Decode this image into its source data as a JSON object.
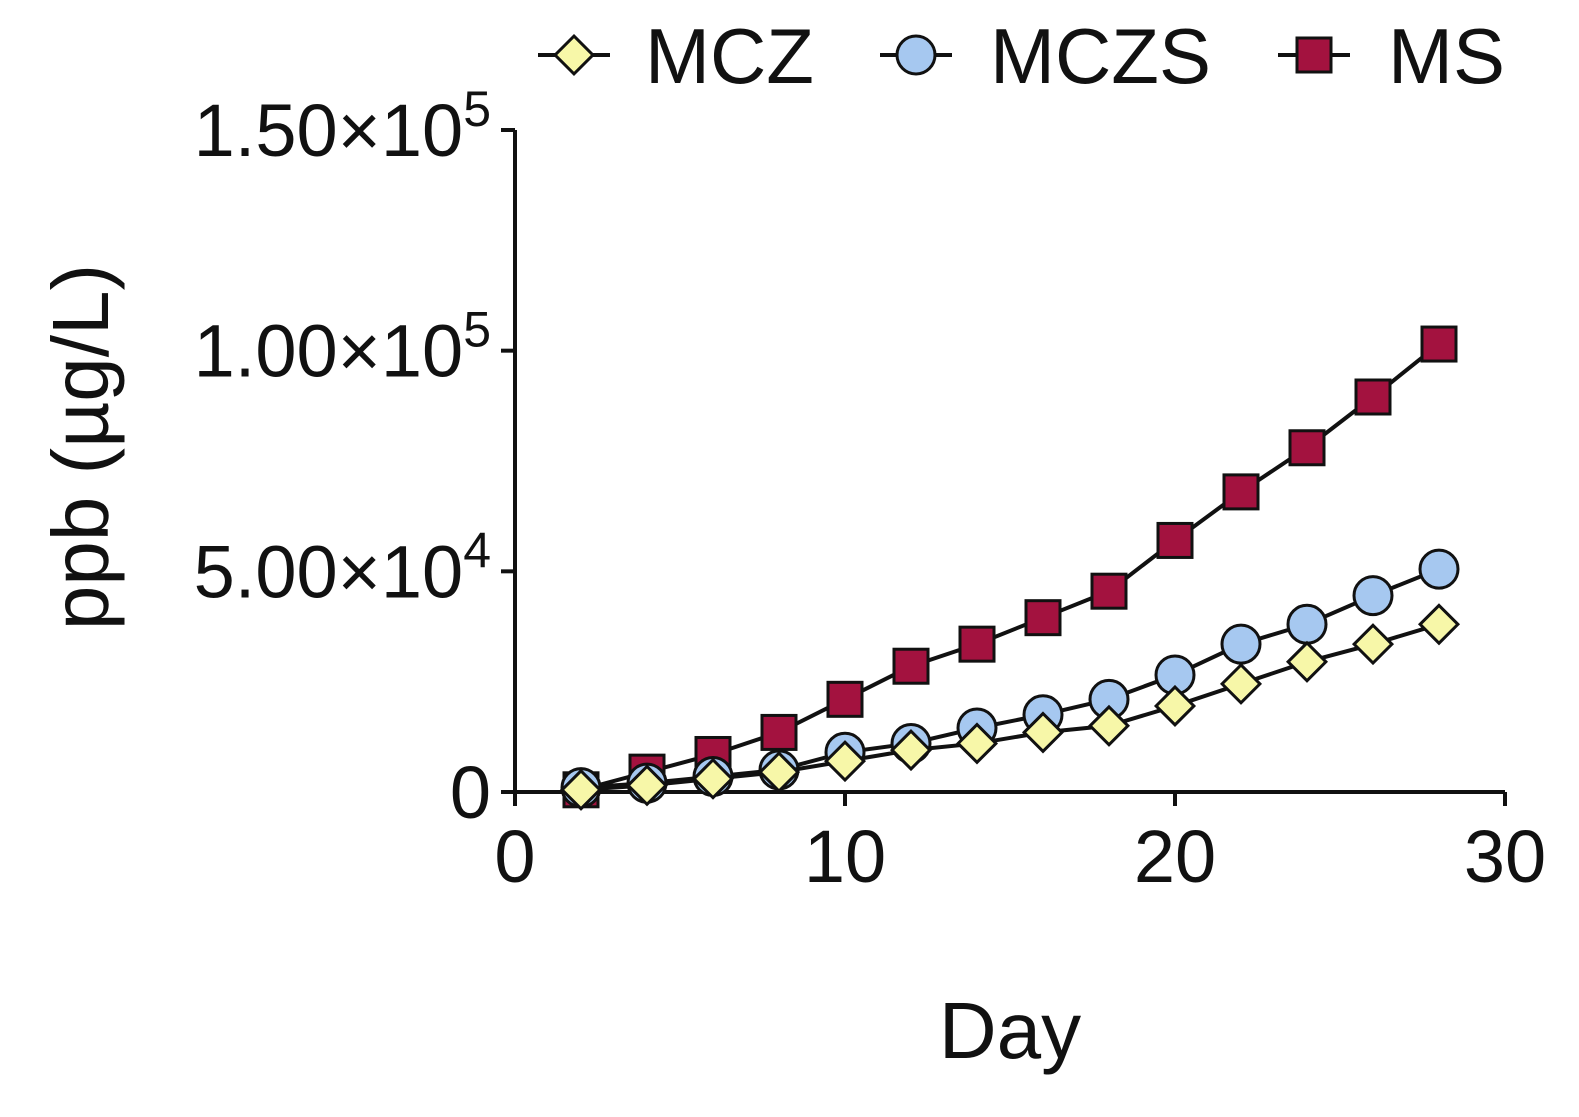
{
  "chart_data": {
    "type": "line",
    "title": "",
    "xlabel": "Day",
    "ylabel": "ppb (µg/L)",
    "xlim": [
      0,
      30
    ],
    "ylim": [
      0,
      150000
    ],
    "xticks": [
      {
        "value": 0,
        "label": "0"
      },
      {
        "value": 10,
        "label": "10"
      },
      {
        "value": 20,
        "label": "20"
      },
      {
        "value": 30,
        "label": "30"
      }
    ],
    "yticks": [
      {
        "value": 0,
        "label": "0",
        "mantissa": "0",
        "exp": ""
      },
      {
        "value": 50000,
        "label": "5.00×10^4",
        "mantissa": "5.00×10",
        "exp": "4"
      },
      {
        "value": 100000,
        "label": "1.00×10^5",
        "mantissa": "1.00×10",
        "exp": "5"
      },
      {
        "value": 150000,
        "label": "1.50×10^5",
        "mantissa": "1.50×10",
        "exp": "5"
      }
    ],
    "legend_position": "top",
    "series": [
      {
        "name": "MCZ",
        "marker": "diamond",
        "color": "#f7f7a8",
        "x": [
          2,
          4,
          6,
          8,
          10,
          12,
          14,
          16,
          18,
          20,
          22,
          24,
          26,
          28
        ],
        "values": [
          500,
          1500,
          3000,
          4500,
          7000,
          9500,
          11000,
          13500,
          15000,
          19500,
          24500,
          29500,
          33500,
          38000
        ]
      },
      {
        "name": "MCZS",
        "marker": "circle",
        "color": "#a6c8f0",
        "x": [
          2,
          4,
          6,
          8,
          10,
          12,
          14,
          16,
          18,
          20,
          22,
          24,
          26,
          28
        ],
        "values": [
          1000,
          2000,
          3500,
          5000,
          9000,
          11000,
          14500,
          17500,
          21000,
          26500,
          33500,
          38000,
          44500,
          50500
        ]
      },
      {
        "name": "MS",
        "marker": "square",
        "color": "#a3123f",
        "x": [
          2,
          4,
          6,
          8,
          10,
          12,
          14,
          16,
          18,
          20,
          22,
          24,
          26,
          28
        ],
        "values": [
          500,
          4500,
          8500,
          13500,
          21000,
          28500,
          33500,
          39500,
          45500,
          57000,
          68000,
          78000,
          89500,
          101500
        ]
      }
    ]
  }
}
